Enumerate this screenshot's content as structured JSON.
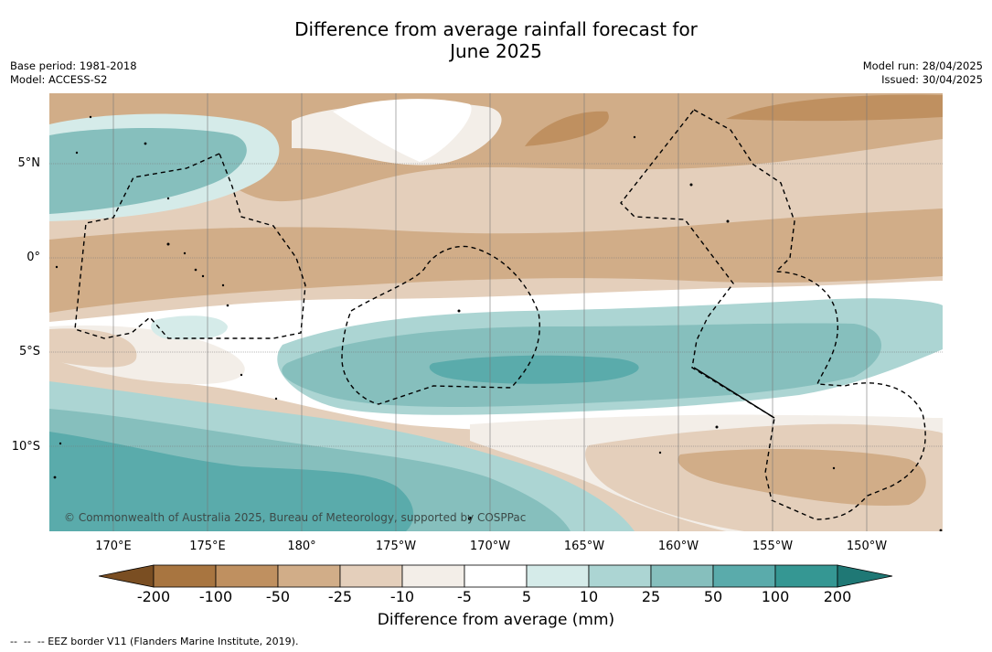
{
  "title_line1": "Difference from average rainfall forecast for",
  "title_line2": "June 2025",
  "base_period": "Base period: 1981-2018",
  "model": "Model: ACCESS-S2",
  "model_run": "Model run: 28/04/2025",
  "issued": "Issued: 30/04/2025",
  "copyright": "© Commonwealth of Australia 2025, Bureau of Meteorology, supported by COSPPac",
  "lat_labels": [
    "5°N",
    "0°",
    "5°S",
    "10°S"
  ],
  "lon_labels": [
    "170°E",
    "175°E",
    "180°",
    "175°W",
    "170°W",
    "165°W",
    "160°W",
    "155°W",
    "150°W"
  ],
  "colorbar": {
    "ticks": [
      "-200",
      "-100",
      "-50",
      "-25",
      "-10",
      "-5",
      "5",
      "10",
      "25",
      "50",
      "100",
      "200"
    ],
    "colors": [
      "#7a4e22",
      "#a87540",
      "#bf9060",
      "#d1ad88",
      "#e4cfbb",
      "#f3eee8",
      "#ffffff",
      "#d5ebe9",
      "#acd5d3",
      "#86bfbd",
      "#5aabab",
      "#359793",
      "#1f7875"
    ],
    "label": "Difference from average (mm)"
  },
  "footnote": "--  --  -- EEZ border V11 (Flanders Marine Institute, 2019)."
}
